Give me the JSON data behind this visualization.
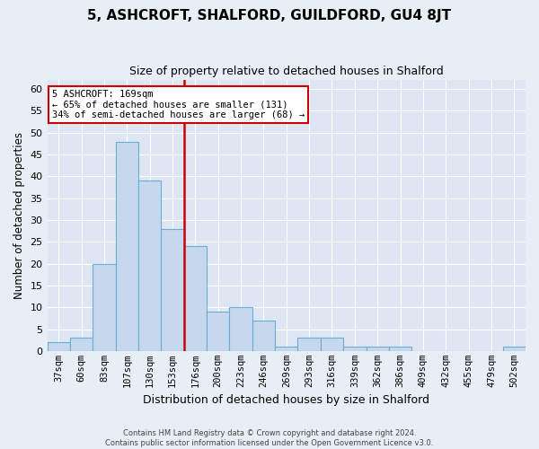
{
  "title": "5, ASHCROFT, SHALFORD, GUILDFORD, GU4 8JT",
  "subtitle": "Size of property relative to detached houses in Shalford",
  "xlabel": "Distribution of detached houses by size in Shalford",
  "ylabel": "Number of detached properties",
  "bar_color": "#c5d8ee",
  "bar_edge_color": "#6aaed6",
  "background_color": "#dde6f2",
  "fig_background_color": "#e8eef6",
  "grid_color": "#ffffff",
  "bins": [
    "37sqm",
    "60sqm",
    "83sqm",
    "107sqm",
    "130sqm",
    "153sqm",
    "176sqm",
    "200sqm",
    "223sqm",
    "246sqm",
    "269sqm",
    "293sqm",
    "316sqm",
    "339sqm",
    "362sqm",
    "386sqm",
    "409sqm",
    "432sqm",
    "455sqm",
    "479sqm",
    "502sqm"
  ],
  "values": [
    2,
    3,
    20,
    48,
    39,
    28,
    24,
    9,
    10,
    7,
    1,
    3,
    3,
    1,
    1,
    1,
    0,
    0,
    0,
    0,
    1
  ],
  "ylim": [
    0,
    62
  ],
  "yticks": [
    0,
    5,
    10,
    15,
    20,
    25,
    30,
    35,
    40,
    45,
    50,
    55,
    60
  ],
  "annotation_line1": "5 ASHCROFT: 169sqm",
  "annotation_line2": "← 65% of detached houses are smaller (131)",
  "annotation_line3": "34% of semi-detached houses are larger (68) →",
  "annotation_box_color": "#ffffff",
  "annotation_box_edge_color": "#cc0000",
  "vline_color": "#cc0000",
  "vline_x_index": 6,
  "footer1": "Contains HM Land Registry data © Crown copyright and database right 2024.",
  "footer2": "Contains public sector information licensed under the Open Government Licence v3.0."
}
